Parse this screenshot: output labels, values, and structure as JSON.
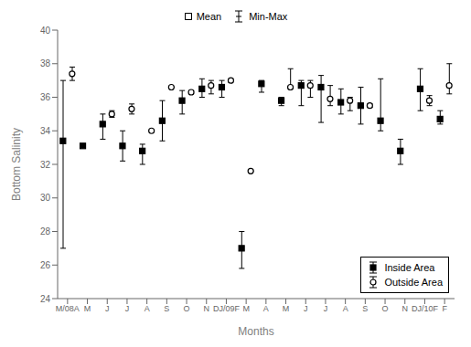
{
  "chart_data": {
    "type": "scatter",
    "categories": [
      "M/08A",
      "M",
      "J",
      "J",
      "A",
      "S",
      "O",
      "N",
      "DJ/09F",
      "M",
      "A",
      "M",
      "J",
      "J",
      "A",
      "S",
      "O",
      "N",
      "DJ/10F",
      "F"
    ],
    "xlabel": "Months",
    "ylabel": "Bottom Salinity",
    "ylim": [
      24,
      40
    ],
    "yticks": [
      24,
      26,
      28,
      30,
      32,
      34,
      36,
      38,
      40
    ],
    "legend": "lower right",
    "annotations": [
      "Mean",
      "Min-Max"
    ],
    "series": [
      {
        "name": "Inside Area",
        "color": "#000000",
        "marker": "filled_square",
        "values": [
          33.4,
          33.1,
          34.4,
          33.1,
          32.8,
          34.6,
          35.8,
          36.5,
          36.6,
          27.0,
          36.8,
          35.8,
          36.7,
          36.6,
          35.7,
          35.5,
          34.6,
          32.8,
          36.5,
          34.7
        ],
        "min": [
          27.0,
          33.1,
          33.5,
          32.2,
          32.0,
          33.4,
          35.0,
          36.0,
          36.0,
          25.8,
          36.3,
          35.5,
          35.5,
          34.5,
          35.0,
          34.4,
          34.0,
          32.0,
          35.2,
          34.4
        ],
        "max": [
          37.0,
          33.1,
          35.0,
          34.0,
          33.2,
          35.8,
          36.4,
          37.1,
          37.0,
          28.0,
          37.0,
          36.0,
          37.0,
          37.3,
          36.5,
          36.6,
          37.1,
          33.5,
          37.7,
          35.2
        ]
      },
      {
        "name": "Outside Area",
        "color": "#000000",
        "marker": "open_circle",
        "values": [
          37.4,
          null,
          35.0,
          35.3,
          34.0,
          36.6,
          36.3,
          36.7,
          37.0,
          31.6,
          null,
          36.6,
          36.7,
          35.9,
          35.8,
          35.5,
          null,
          null,
          35.8,
          36.7
        ],
        "min": [
          37.0,
          null,
          34.8,
          35.0,
          34.0,
          36.6,
          36.2,
          36.2,
          36.9,
          31.6,
          null,
          36.5,
          36.0,
          35.5,
          35.2,
          35.4,
          null,
          null,
          35.5,
          36.2
        ],
        "max": [
          37.8,
          null,
          35.2,
          35.6,
          34.0,
          36.6,
          36.4,
          37.0,
          37.1,
          31.6,
          null,
          37.7,
          37.0,
          36.7,
          36.0,
          35.6,
          null,
          null,
          36.1,
          38.0
        ]
      }
    ]
  }
}
